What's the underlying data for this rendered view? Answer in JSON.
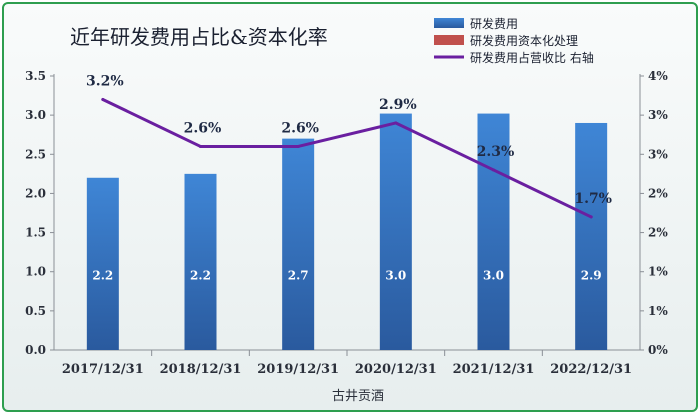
{
  "chart_data": {
    "type": "bar",
    "title": "近年研发费用占比&资本化率",
    "xlabel": "古井贡酒",
    "categories": [
      "2017/12/31",
      "2018/12/31",
      "2019/12/31",
      "2020/12/31",
      "2021/12/31",
      "2022/12/31"
    ],
    "ylim": [
      0,
      3.5
    ],
    "y_ticks": [
      "0.0",
      "0.5",
      "1.0",
      "1.5",
      "2.0",
      "2.5",
      "3.0",
      "3.5"
    ],
    "y2lim": [
      0,
      3.5
    ],
    "y2_ticks": [
      "0%",
      "1%",
      "1%",
      "2%",
      "2%",
      "3%",
      "3%",
      "4%"
    ],
    "grid": false,
    "legend_position": "top-right",
    "series": [
      {
        "name": "研发费用",
        "type": "bar",
        "axis": "left",
        "color": "#3a78c8",
        "values": [
          2.2,
          2.25,
          2.7,
          3.02,
          3.02,
          2.9
        ],
        "labels": [
          "2.2",
          "2.2",
          "2.7",
          "3.0",
          "3.0",
          "2.9"
        ]
      },
      {
        "name": "研发费用资本化处理",
        "type": "bar",
        "axis": "left",
        "color": "#c0504d",
        "values": [
          0,
          0,
          0,
          0,
          0,
          0
        ],
        "labels": []
      },
      {
        "name": "研发费用占营收比 右轴",
        "type": "line",
        "axis": "right",
        "color": "#6a1fa0",
        "values": [
          3.2,
          2.6,
          2.6,
          2.9,
          2.3,
          1.7
        ],
        "labels": [
          "3.2%",
          "2.6%",
          "2.6%",
          "2.9%",
          "2.3%",
          "1.7%"
        ]
      }
    ]
  }
}
